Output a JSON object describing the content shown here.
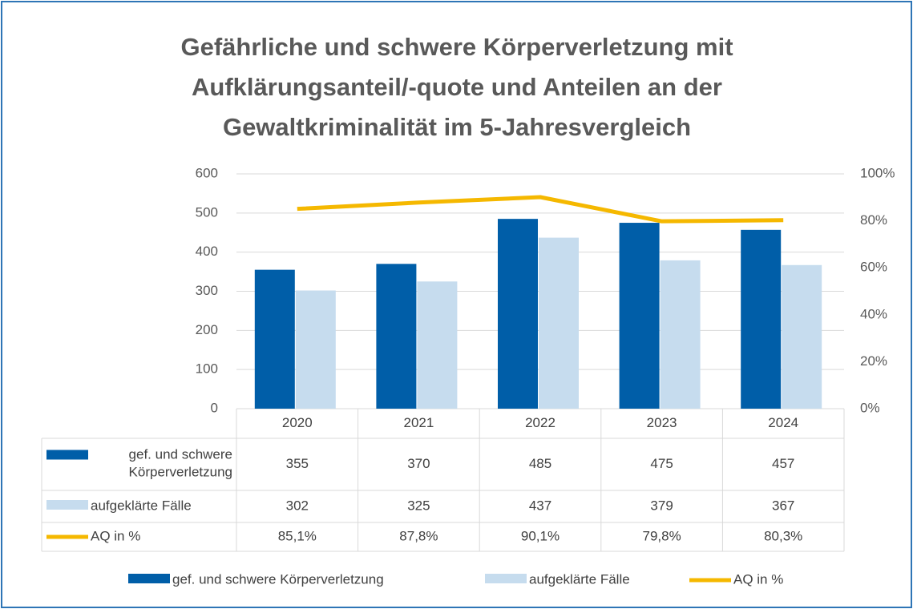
{
  "chart_data": {
    "type": "bar",
    "title": "Gefährliche und schwere Körperverletzung mit Aufklärungsanteil/-quote und Anteilen an der Gewaltkriminalität im 5-Jahresvergleich",
    "categories": [
      "2020",
      "2021",
      "2022",
      "2023",
      "2024"
    ],
    "series": [
      {
        "name": "gef. und schwere Körperverletzung",
        "color": "#005ea8",
        "type": "bar",
        "values": [
          355,
          370,
          485,
          475,
          457
        ]
      },
      {
        "name": "aufgeklärte Fälle",
        "color": "#c6dcee",
        "type": "bar",
        "values": [
          302,
          325,
          437,
          379,
          367
        ]
      },
      {
        "name": "AQ in %",
        "color": "#f5b800",
        "type": "line",
        "axis": "y2",
        "values": [
          85.1,
          87.8,
          90.1,
          79.8,
          80.3
        ],
        "value_labels": [
          "85,1%",
          "87,8%",
          "90,1%",
          "79,8%",
          "80,3%"
        ]
      }
    ],
    "ylim": [
      0,
      600
    ],
    "yticks": [
      0,
      100,
      200,
      300,
      400,
      500,
      600
    ],
    "y2lim": [
      0,
      100
    ],
    "y2ticks": [
      {
        "value": 0,
        "label": "0%"
      },
      {
        "value": 20,
        "label": "20%"
      },
      {
        "value": 40,
        "label": "40%"
      },
      {
        "value": 60,
        "label": "60%"
      },
      {
        "value": 80,
        "label": "80%"
      },
      {
        "value": 100,
        "label": "100%"
      }
    ],
    "grid": true,
    "legend": "bottom",
    "data_table": true
  }
}
